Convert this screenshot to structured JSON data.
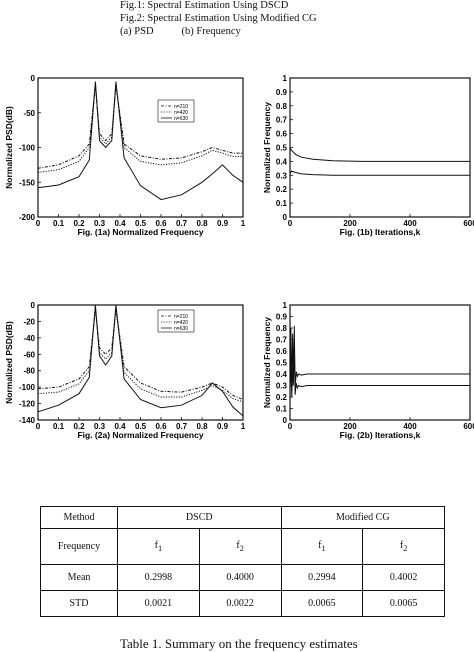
{
  "header": {
    "line1": "Fig.1: Spectral Estimation Using DSCD",
    "line2": "Fig.2: Spectral Estimation Using Modified CG",
    "line3_a": "(a)  PSD",
    "line3_b": "(b)  Frequency"
  },
  "chart_data": [
    {
      "id": "fig1a",
      "type": "line",
      "xlabel": "Fig. (1a) Normalized Frequency",
      "ylabel": "Normalized PSD(dB)",
      "xlim": [
        0,
        1
      ],
      "ylim": [
        -200,
        0
      ],
      "xticks": [
        "0",
        "0.1",
        "0.2",
        "0.3",
        "0.4",
        "0.5",
        "0.6",
        "0.7",
        "0.8",
        "0.9",
        "1"
      ],
      "yticks": [
        "0",
        "-50",
        "-100",
        "-150",
        "-200"
      ],
      "legend": [
        "n=210",
        "n=420",
        "n=630"
      ],
      "legend_position": "top-right",
      "peaks": [
        0.28,
        0.38,
        0.9
      ],
      "series": [
        {
          "name": "n=210",
          "style": "dashdot",
          "x": [
            0,
            0.1,
            0.2,
            0.25,
            0.28,
            0.3,
            0.33,
            0.36,
            0.38,
            0.42,
            0.5,
            0.6,
            0.7,
            0.8,
            0.85,
            0.9,
            0.95,
            1
          ],
          "y": [
            -130,
            -125,
            -112,
            -95,
            -10,
            -80,
            -90,
            -80,
            -10,
            -95,
            -112,
            -117,
            -115,
            -106,
            -100,
            -104,
            -108,
            -108
          ]
        },
        {
          "name": "n=420",
          "style": "dotted",
          "x": [
            0,
            0.1,
            0.2,
            0.25,
            0.28,
            0.3,
            0.33,
            0.36,
            0.38,
            0.42,
            0.5,
            0.6,
            0.7,
            0.8,
            0.85,
            0.9,
            0.95,
            1
          ],
          "y": [
            -136,
            -132,
            -120,
            -100,
            -10,
            -85,
            -95,
            -85,
            -10,
            -100,
            -120,
            -125,
            -122,
            -112,
            -104,
            -108,
            -113,
            -113
          ]
        },
        {
          "name": "n=630",
          "style": "solid",
          "x": [
            0,
            0.1,
            0.2,
            0.25,
            0.28,
            0.3,
            0.33,
            0.36,
            0.38,
            0.42,
            0.5,
            0.6,
            0.7,
            0.8,
            0.85,
            0.9,
            0.95,
            1
          ],
          "y": [
            -158,
            -154,
            -142,
            -118,
            -5,
            -90,
            -100,
            -90,
            -5,
            -115,
            -155,
            -175,
            -168,
            -150,
            -138,
            -125,
            -140,
            -150
          ]
        }
      ]
    },
    {
      "id": "fig1b",
      "type": "line",
      "xlabel": "Fig. (1b) Iterations,k",
      "ylabel": "Normalized Frequency",
      "xlim": [
        0,
        630
      ],
      "ylim": [
        0,
        1
      ],
      "xticks": [
        "0",
        "200",
        "400",
        "600"
      ],
      "yticks": [
        "0",
        "0.1",
        "0.2",
        "0.3",
        "0.4",
        "0.5",
        "0.6",
        "0.7",
        "0.8",
        "0.9",
        "1"
      ],
      "series": [
        {
          "x": [
            0,
            5,
            20,
            40,
            80,
            150,
            250,
            400,
            630
          ],
          "y": [
            0.5,
            0.48,
            0.45,
            0.43,
            0.415,
            0.405,
            0.4,
            0.4,
            0.4
          ]
        },
        {
          "x": [
            0,
            5,
            20,
            40,
            80,
            150,
            250,
            400,
            630
          ],
          "y": [
            0.31,
            0.33,
            0.32,
            0.31,
            0.305,
            0.3,
            0.3,
            0.3,
            0.3
          ]
        }
      ]
    },
    {
      "id": "fig2a",
      "type": "line",
      "xlabel": "Fig. (2a) Normalized Frequency",
      "ylabel": "Normalized PSD(dB)",
      "xlim": [
        0,
        1
      ],
      "ylim": [
        -140,
        0
      ],
      "xticks": [
        "0",
        "0.1",
        "0.2",
        "0.3",
        "0.4",
        "0.5",
        "0.6",
        "0.7",
        "0.8",
        "0.9",
        "1"
      ],
      "yticks": [
        "0",
        "-20",
        "-40",
        "-60",
        "-80",
        "-100",
        "-120",
        "-140"
      ],
      "legend": [
        "n=210",
        "n=420",
        "n=630"
      ],
      "legend_position": "top-right",
      "series": [
        {
          "name": "n=210",
          "style": "dashdot",
          "x": [
            0,
            0.1,
            0.2,
            0.25,
            0.28,
            0.3,
            0.33,
            0.36,
            0.38,
            0.42,
            0.5,
            0.6,
            0.7,
            0.8,
            0.85,
            0.9,
            0.95,
            1
          ],
          "y": [
            -102,
            -100,
            -90,
            -75,
            -5,
            -52,
            -60,
            -52,
            -5,
            -75,
            -95,
            -105,
            -106,
            -100,
            -95,
            -100,
            -110,
            -115
          ]
        },
        {
          "name": "n=420",
          "style": "dotted",
          "x": [
            0,
            0.1,
            0.2,
            0.25,
            0.28,
            0.3,
            0.33,
            0.36,
            0.38,
            0.42,
            0.5,
            0.6,
            0.7,
            0.8,
            0.85,
            0.9,
            0.95,
            1
          ],
          "y": [
            -108,
            -106,
            -96,
            -80,
            -5,
            -58,
            -66,
            -58,
            -5,
            -82,
            -102,
            -112,
            -112,
            -104,
            -98,
            -104,
            -114,
            -118
          ]
        },
        {
          "name": "n=630",
          "style": "solid",
          "x": [
            0,
            0.1,
            0.2,
            0.25,
            0.28,
            0.3,
            0.33,
            0.36,
            0.38,
            0.42,
            0.5,
            0.6,
            0.7,
            0.8,
            0.85,
            0.9,
            0.95,
            1
          ],
          "y": [
            -130,
            -122,
            -108,
            -88,
            0,
            -62,
            -73,
            -62,
            0,
            -90,
            -115,
            -125,
            -122,
            -110,
            -95,
            -105,
            -124,
            -135
          ]
        }
      ]
    },
    {
      "id": "fig2b",
      "type": "line",
      "xlabel": "Fig. (2b) Iterations,k",
      "ylabel": "Normalized Frequency",
      "xlim": [
        0,
        630
      ],
      "ylim": [
        0,
        1
      ],
      "xticks": [
        "0",
        "200",
        "400",
        "600"
      ],
      "yticks": [
        "0",
        "0.1",
        "0.2",
        "0.3",
        "0.4",
        "0.5",
        "0.6",
        "0.7",
        "0.8",
        "0.9",
        "1"
      ],
      "series": [
        {
          "x": [
            0,
            3,
            6,
            9,
            12,
            15,
            18,
            22,
            26,
            30,
            40,
            60,
            100,
            200,
            400,
            630
          ],
          "y": [
            0.3,
            0.8,
            0.25,
            0.75,
            0.35,
            0.82,
            0.28,
            0.42,
            0.38,
            0.4,
            0.39,
            0.4,
            0.4,
            0.4,
            0.4,
            0.4
          ]
        },
        {
          "x": [
            0,
            3,
            6,
            9,
            12,
            15,
            18,
            22,
            26,
            30,
            40,
            60,
            100,
            200,
            400,
            630
          ],
          "y": [
            0.25,
            0.5,
            0.2,
            0.45,
            0.3,
            0.7,
            0.22,
            0.32,
            0.28,
            0.3,
            0.29,
            0.3,
            0.3,
            0.3,
            0.3,
            0.3
          ]
        }
      ]
    }
  ],
  "table": {
    "method_label": "Method",
    "dscd_label": "DSCD",
    "mcg_label": "Modified CG",
    "frequency_label": "Frequency",
    "f1": "f",
    "f1_sub": "1",
    "f2": "f",
    "f2_sub": "2",
    "rows": [
      {
        "label": "Mean",
        "values": [
          "0.2998",
          "0.4000",
          "0.2994",
          "0.4002"
        ]
      },
      {
        "label": "STD",
        "values": [
          "0.0021",
          "0.0022",
          "0.0065",
          "0.0065"
        ]
      }
    ]
  },
  "caption": "Table 1. Summary on the frequency estimates"
}
